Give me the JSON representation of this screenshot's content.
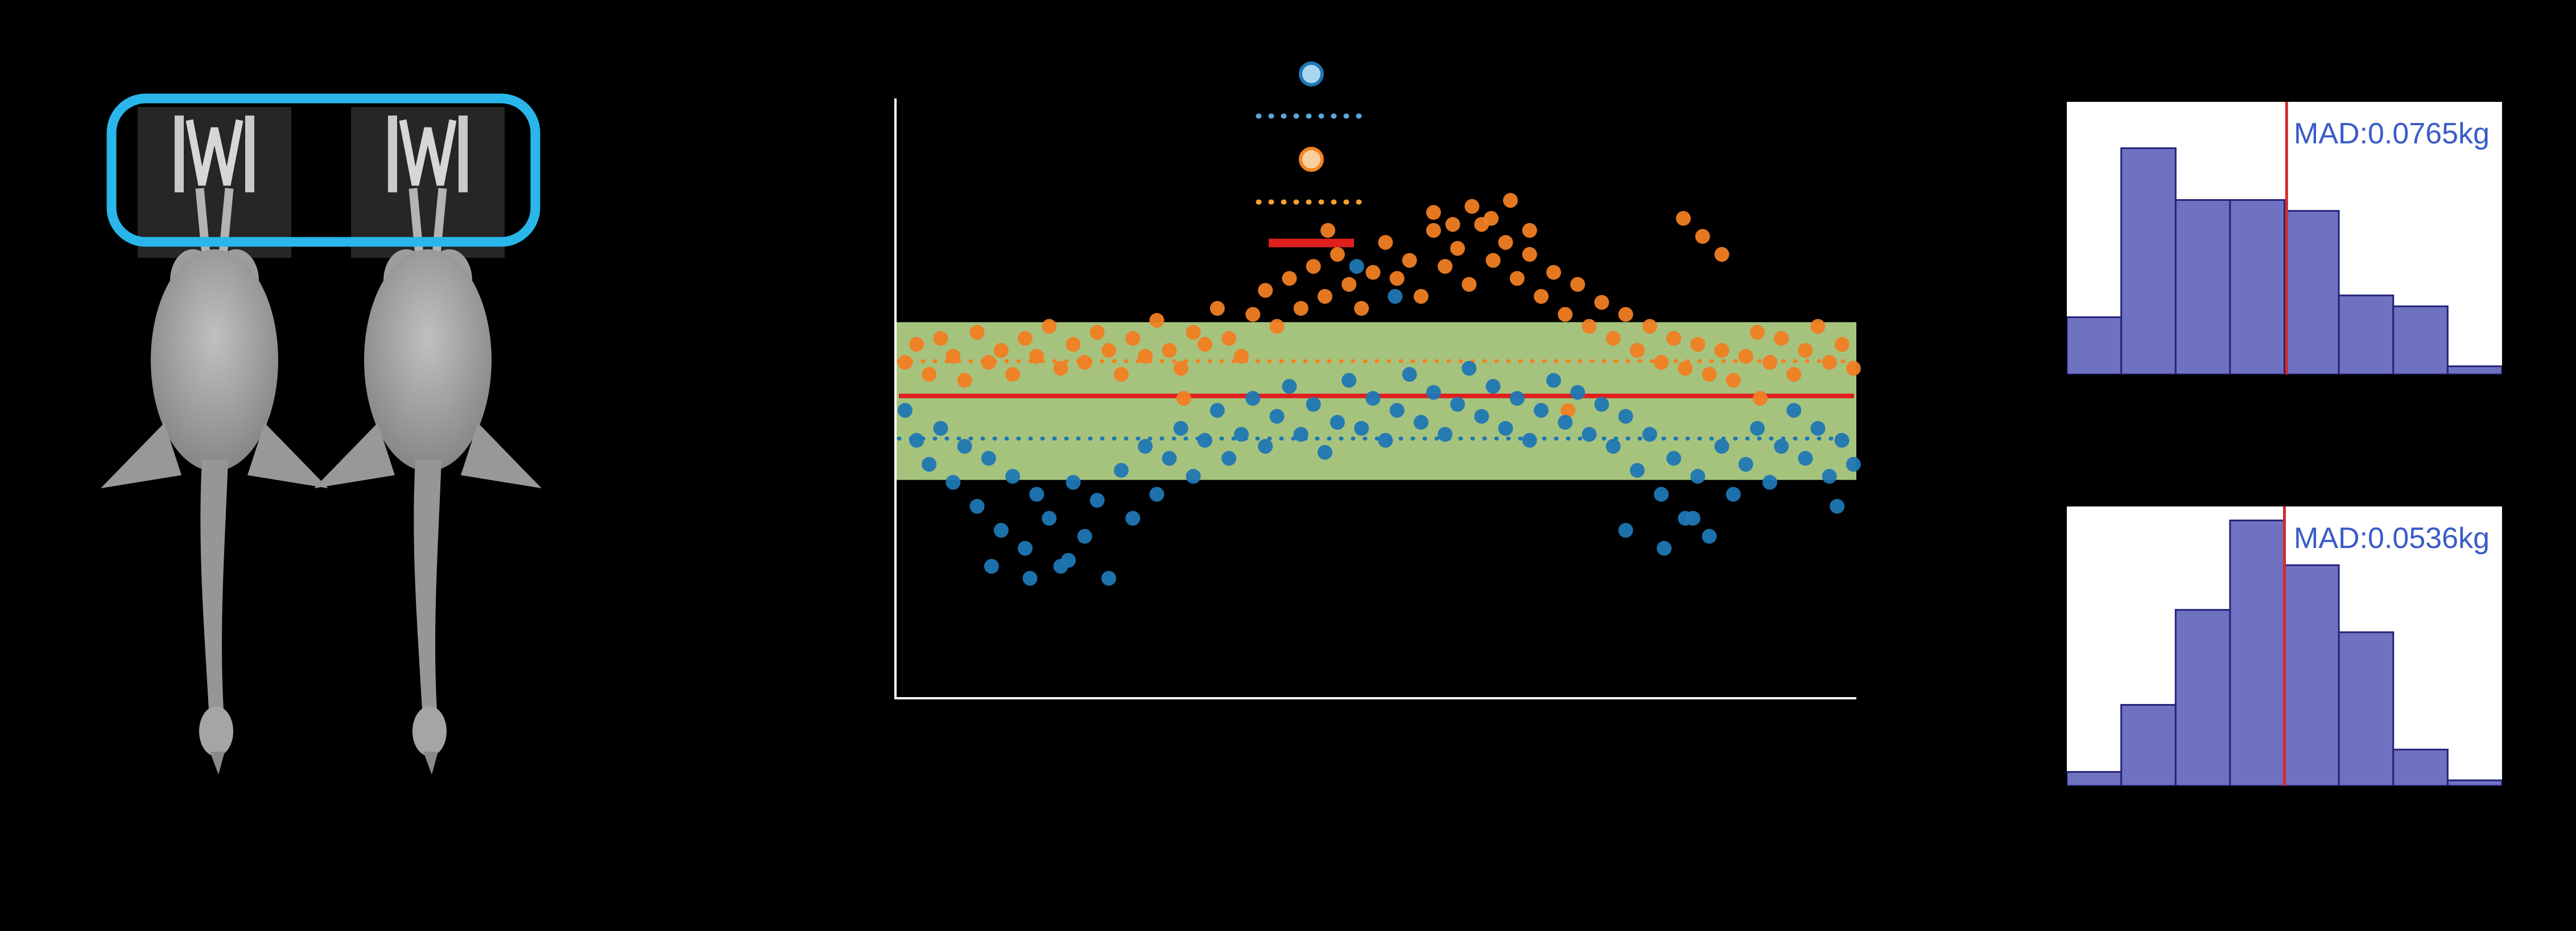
{
  "figure": {
    "background": "#000000",
    "left_panel": {
      "description": "two grayscale poultry carcass photographs hanging on metal shackles",
      "highlight_color": "#29b6ea"
    }
  },
  "chart_data": [
    {
      "type": "scatter",
      "name": "weight-prediction-error-scatter",
      "title": "",
      "xlabel": "",
      "ylabel": "",
      "axis_note": "no tick labels visible; point coordinates given as fractions of plot box (x: 0 left - 1 right, y: 0 top - 1 bottom)",
      "axes": {
        "color": "#ffffff",
        "left": true,
        "bottom": true
      },
      "band": {
        "name": "tolerance-band",
        "color": "#a6c37e",
        "y_top_frac": 0.373,
        "y_bottom_frac": 0.636
      },
      "reference_lines": [
        {
          "name": "red-median-line",
          "color": "#e01f1f",
          "style": "solid",
          "y_frac": 0.496
        },
        {
          "name": "orange-mean-dotted-line",
          "color": "#f58220",
          "style": "dotted",
          "y_frac": 0.438
        },
        {
          "name": "blue-mean-dotted-line",
          "color": "#1f77b4",
          "style": "dotted",
          "y_frac": 0.567
        }
      ],
      "legend": {
        "position": "top-center",
        "has_text": false,
        "entries": [
          {
            "kind": "circle",
            "color": "#1f77b4",
            "fill": "#a8d8f0"
          },
          {
            "kind": "dotted-line",
            "color": "#5aa7d8"
          },
          {
            "kind": "circle",
            "color": "#f58220",
            "fill": "#f7cfa0"
          },
          {
            "kind": "dotted-line",
            "color": "#f5a030"
          },
          {
            "kind": "solid-line",
            "color": "#e01f1f"
          }
        ]
      },
      "series": [
        {
          "name": "orange-points",
          "color": "#f07e23",
          "points": [
            [
              0.01,
              0.44
            ],
            [
              0.022,
              0.41
            ],
            [
              0.035,
              0.46
            ],
            [
              0.047,
              0.4
            ],
            [
              0.06,
              0.43
            ],
            [
              0.072,
              0.47
            ],
            [
              0.085,
              0.39
            ],
            [
              0.097,
              0.44
            ],
            [
              0.11,
              0.42
            ],
            [
              0.122,
              0.46
            ],
            [
              0.135,
              0.4
            ],
            [
              0.147,
              0.43
            ],
            [
              0.16,
              0.38
            ],
            [
              0.172,
              0.45
            ],
            [
              0.185,
              0.41
            ],
            [
              0.197,
              0.44
            ],
            [
              0.21,
              0.39
            ],
            [
              0.222,
              0.42
            ],
            [
              0.235,
              0.46
            ],
            [
              0.247,
              0.4
            ],
            [
              0.26,
              0.43
            ],
            [
              0.272,
              0.37
            ],
            [
              0.285,
              0.42
            ],
            [
              0.297,
              0.45
            ],
            [
              0.31,
              0.39
            ],
            [
              0.322,
              0.41
            ],
            [
              0.335,
              0.35
            ],
            [
              0.347,
              0.4
            ],
            [
              0.36,
              0.43
            ],
            [
              0.372,
              0.36
            ],
            [
              0.385,
              0.32
            ],
            [
              0.397,
              0.38
            ],
            [
              0.41,
              0.3
            ],
            [
              0.422,
              0.35
            ],
            [
              0.435,
              0.28
            ],
            [
              0.447,
              0.33
            ],
            [
              0.46,
              0.26
            ],
            [
              0.472,
              0.31
            ],
            [
              0.485,
              0.35
            ],
            [
              0.497,
              0.29
            ],
            [
              0.51,
              0.24
            ],
            [
              0.522,
              0.3
            ],
            [
              0.535,
              0.27
            ],
            [
              0.547,
              0.33
            ],
            [
              0.56,
              0.22
            ],
            [
              0.572,
              0.28
            ],
            [
              0.585,
              0.25
            ],
            [
              0.597,
              0.31
            ],
            [
              0.61,
              0.21
            ],
            [
              0.622,
              0.27
            ],
            [
              0.635,
              0.24
            ],
            [
              0.647,
              0.3
            ],
            [
              0.66,
              0.26
            ],
            [
              0.672,
              0.33
            ],
            [
              0.685,
              0.29
            ],
            [
              0.697,
              0.36
            ],
            [
              0.71,
              0.31
            ],
            [
              0.722,
              0.38
            ],
            [
              0.735,
              0.34
            ],
            [
              0.747,
              0.4
            ],
            [
              0.76,
              0.36
            ],
            [
              0.772,
              0.42
            ],
            [
              0.785,
              0.38
            ],
            [
              0.797,
              0.44
            ],
            [
              0.81,
              0.4
            ],
            [
              0.822,
              0.45
            ],
            [
              0.835,
              0.41
            ],
            [
              0.847,
              0.46
            ],
            [
              0.86,
              0.42
            ],
            [
              0.872,
              0.47
            ],
            [
              0.885,
              0.43
            ],
            [
              0.897,
              0.39
            ],
            [
              0.91,
              0.44
            ],
            [
              0.922,
              0.4
            ],
            [
              0.935,
              0.46
            ],
            [
              0.947,
              0.42
            ],
            [
              0.96,
              0.38
            ],
            [
              0.972,
              0.44
            ],
            [
              0.985,
              0.41
            ],
            [
              0.997,
              0.45
            ],
            [
              0.45,
              0.22
            ],
            [
              0.56,
              0.19
            ],
            [
              0.58,
              0.21
            ],
            [
              0.6,
              0.18
            ],
            [
              0.62,
              0.2
            ],
            [
              0.64,
              0.17
            ],
            [
              0.66,
              0.22
            ],
            [
              0.82,
              0.2
            ],
            [
              0.84,
              0.23
            ],
            [
              0.86,
              0.26
            ],
            [
              0.3,
              0.5
            ],
            [
              0.7,
              0.52
            ],
            [
              0.9,
              0.5
            ]
          ]
        },
        {
          "name": "blue-points",
          "color": "#1f77b4",
          "points": [
            [
              0.01,
              0.52
            ],
            [
              0.022,
              0.57
            ],
            [
              0.035,
              0.61
            ],
            [
              0.047,
              0.55
            ],
            [
              0.06,
              0.64
            ],
            [
              0.072,
              0.58
            ],
            [
              0.085,
              0.68
            ],
            [
              0.097,
              0.6
            ],
            [
              0.11,
              0.72
            ],
            [
              0.122,
              0.63
            ],
            [
              0.135,
              0.75
            ],
            [
              0.147,
              0.66
            ],
            [
              0.16,
              0.7
            ],
            [
              0.172,
              0.78
            ],
            [
              0.185,
              0.64
            ],
            [
              0.197,
              0.73
            ],
            [
              0.21,
              0.67
            ],
            [
              0.222,
              0.8
            ],
            [
              0.235,
              0.62
            ],
            [
              0.247,
              0.7
            ],
            [
              0.26,
              0.58
            ],
            [
              0.272,
              0.66
            ],
            [
              0.285,
              0.6
            ],
            [
              0.297,
              0.55
            ],
            [
              0.31,
              0.63
            ],
            [
              0.322,
              0.57
            ],
            [
              0.335,
              0.52
            ],
            [
              0.347,
              0.6
            ],
            [
              0.36,
              0.56
            ],
            [
              0.372,
              0.5
            ],
            [
              0.385,
              0.58
            ],
            [
              0.397,
              0.53
            ],
            [
              0.41,
              0.48
            ],
            [
              0.422,
              0.56
            ],
            [
              0.435,
              0.51
            ],
            [
              0.447,
              0.59
            ],
            [
              0.46,
              0.54
            ],
            [
              0.472,
              0.47
            ],
            [
              0.485,
              0.55
            ],
            [
              0.497,
              0.5
            ],
            [
              0.51,
              0.57
            ],
            [
              0.522,
              0.52
            ],
            [
              0.535,
              0.46
            ],
            [
              0.547,
              0.54
            ],
            [
              0.56,
              0.49
            ],
            [
              0.572,
              0.56
            ],
            [
              0.585,
              0.51
            ],
            [
              0.597,
              0.45
            ],
            [
              0.61,
              0.53
            ],
            [
              0.622,
              0.48
            ],
            [
              0.635,
              0.55
            ],
            [
              0.647,
              0.5
            ],
            [
              0.66,
              0.57
            ],
            [
              0.672,
              0.52
            ],
            [
              0.685,
              0.47
            ],
            [
              0.697,
              0.54
            ],
            [
              0.71,
              0.49
            ],
            [
              0.722,
              0.56
            ],
            [
              0.735,
              0.51
            ],
            [
              0.747,
              0.58
            ],
            [
              0.76,
              0.53
            ],
            [
              0.772,
              0.62
            ],
            [
              0.785,
              0.56
            ],
            [
              0.797,
              0.66
            ],
            [
              0.81,
              0.6
            ],
            [
              0.822,
              0.7
            ],
            [
              0.835,
              0.63
            ],
            [
              0.847,
              0.73
            ],
            [
              0.86,
              0.58
            ],
            [
              0.872,
              0.66
            ],
            [
              0.885,
              0.61
            ],
            [
              0.897,
              0.55
            ],
            [
              0.91,
              0.64
            ],
            [
              0.922,
              0.58
            ],
            [
              0.935,
              0.52
            ],
            [
              0.947,
              0.6
            ],
            [
              0.96,
              0.55
            ],
            [
              0.972,
              0.63
            ],
            [
              0.985,
              0.57
            ],
            [
              0.997,
              0.61
            ],
            [
              0.48,
              0.28
            ],
            [
              0.52,
              0.33
            ],
            [
              0.1,
              0.78
            ],
            [
              0.14,
              0.8
            ],
            [
              0.18,
              0.77
            ],
            [
              0.76,
              0.72
            ],
            [
              0.8,
              0.75
            ],
            [
              0.83,
              0.7
            ],
            [
              0.98,
              0.68
            ]
          ]
        }
      ]
    },
    {
      "type": "histogram",
      "name": "error-histogram-top",
      "annotation": "MAD:0.0765kg",
      "annotation_color": "#3a5bc7",
      "bar_color": "#6f72c0",
      "bar_edge": "#23237a",
      "vline_color": "#d62a2a",
      "vline_frac": 0.505,
      "bins_frac": [
        0.21,
        0.83,
        0.64,
        0.64,
        0.6,
        0.29,
        0.25,
        0.03
      ]
    },
    {
      "type": "histogram",
      "name": "error-histogram-bottom",
      "annotation": "MAD:0.0536kg",
      "annotation_color": "#3a5bc7",
      "bar_color": "#6f72c0",
      "bar_edge": "#23237a",
      "vline_color": "#d62a2a",
      "vline_frac": 0.5,
      "bins_frac": [
        0.05,
        0.29,
        0.63,
        0.95,
        0.79,
        0.55,
        0.13,
        0.02
      ]
    }
  ]
}
